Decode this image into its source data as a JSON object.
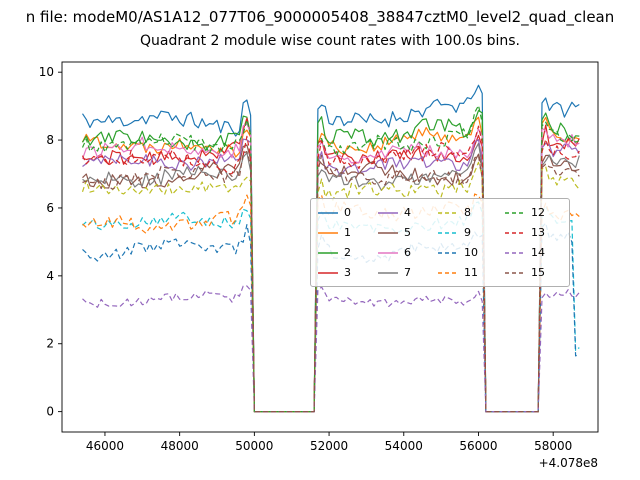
{
  "header": {
    "suptitle": "n file: modeM0/AS1A12_077T06_9000005408_38847cztM0_level2_quad_clean"
  },
  "chart_data": {
    "type": "line",
    "title": "Quadrant 2 module wise count rates with 100.0s bins.",
    "xlabel": "",
    "ylabel": "",
    "x_offset_label": "+4.078e8",
    "xlim": [
      44850,
      59200
    ],
    "ylim": [
      -0.6,
      10.3
    ],
    "xticks": [
      46000,
      48000,
      50000,
      52000,
      54000,
      56000,
      58000
    ],
    "yticks": [
      0,
      2,
      4,
      6,
      8,
      10
    ],
    "grid": false,
    "legend_position": "center right",
    "legend_columns": 4,
    "x_start": 45400,
    "x_end": 58700,
    "bin_seconds": 100,
    "gaps": [
      [
        49950,
        51650
      ],
      [
        56150,
        57650
      ]
    ],
    "series": [
      {
        "name": "0",
        "color": "#1f77b4",
        "dash": "solid",
        "mean": 8.55,
        "amp": 0.35,
        "trend": 0.25,
        "seed": 11
      },
      {
        "name": "1",
        "color": "#ff7f0e",
        "dash": "solid",
        "mean": 7.75,
        "amp": 0.3,
        "trend": 0.3,
        "seed": 22
      },
      {
        "name": "2",
        "color": "#2ca02c",
        "dash": "solid",
        "mean": 7.95,
        "amp": 0.35,
        "trend": 0.3,
        "seed": 33
      },
      {
        "name": "3",
        "color": "#d62728",
        "dash": "solid",
        "mean": 7.5,
        "amp": 0.3,
        "trend": 0.2,
        "seed": 44
      },
      {
        "name": "4",
        "color": "#9467bd",
        "dash": "solid",
        "mean": 7.25,
        "amp": 0.3,
        "trend": 0.2,
        "seed": 55
      },
      {
        "name": "5",
        "color": "#8c564b",
        "dash": "solid",
        "mean": 6.9,
        "amp": 0.3,
        "trend": 0.3,
        "seed": 66
      },
      {
        "name": "6",
        "color": "#e377c2",
        "dash": "solid",
        "mean": 7.6,
        "amp": 0.3,
        "trend": 0.25,
        "seed": 77
      },
      {
        "name": "7",
        "color": "#7f7f7f",
        "dash": "solid",
        "mean": 6.75,
        "amp": 0.3,
        "trend": 0.35,
        "seed": 88
      },
      {
        "name": "8",
        "color": "#bcbd22",
        "dash": "dashed",
        "mean": 6.45,
        "amp": 0.3,
        "trend": 0.2,
        "seed": 99
      },
      {
        "name": "9",
        "color": "#17becf",
        "dash": "dashed",
        "mean": 5.5,
        "amp": 0.25,
        "trend": 0.1,
        "seed": 101,
        "end_drop": true
      },
      {
        "name": "10",
        "color": "#1f77b4",
        "dash": "dashed",
        "mean": 4.75,
        "amp": 0.3,
        "trend": 0.15,
        "seed": 111,
        "end_drop": true
      },
      {
        "name": "11",
        "color": "#ff7f0e",
        "dash": "dashed",
        "mean": 5.65,
        "amp": 0.3,
        "trend": 0.2,
        "seed": 121
      },
      {
        "name": "12",
        "color": "#2ca02c",
        "dash": "dashed",
        "mean": 7.8,
        "amp": 0.3,
        "trend": 0.2,
        "seed": 131
      },
      {
        "name": "13",
        "color": "#d62728",
        "dash": "dashed",
        "mean": 7.35,
        "amp": 0.3,
        "trend": 0.2,
        "seed": 141
      },
      {
        "name": "14",
        "color": "#9467bd",
        "dash": "dashed",
        "mean": 3.3,
        "amp": 0.2,
        "trend": 0.05,
        "seed": 151
      },
      {
        "name": "15",
        "color": "#8c564b",
        "dash": "dashed",
        "mean": 6.85,
        "amp": 0.3,
        "trend": 0.2,
        "seed": 161
      }
    ]
  }
}
